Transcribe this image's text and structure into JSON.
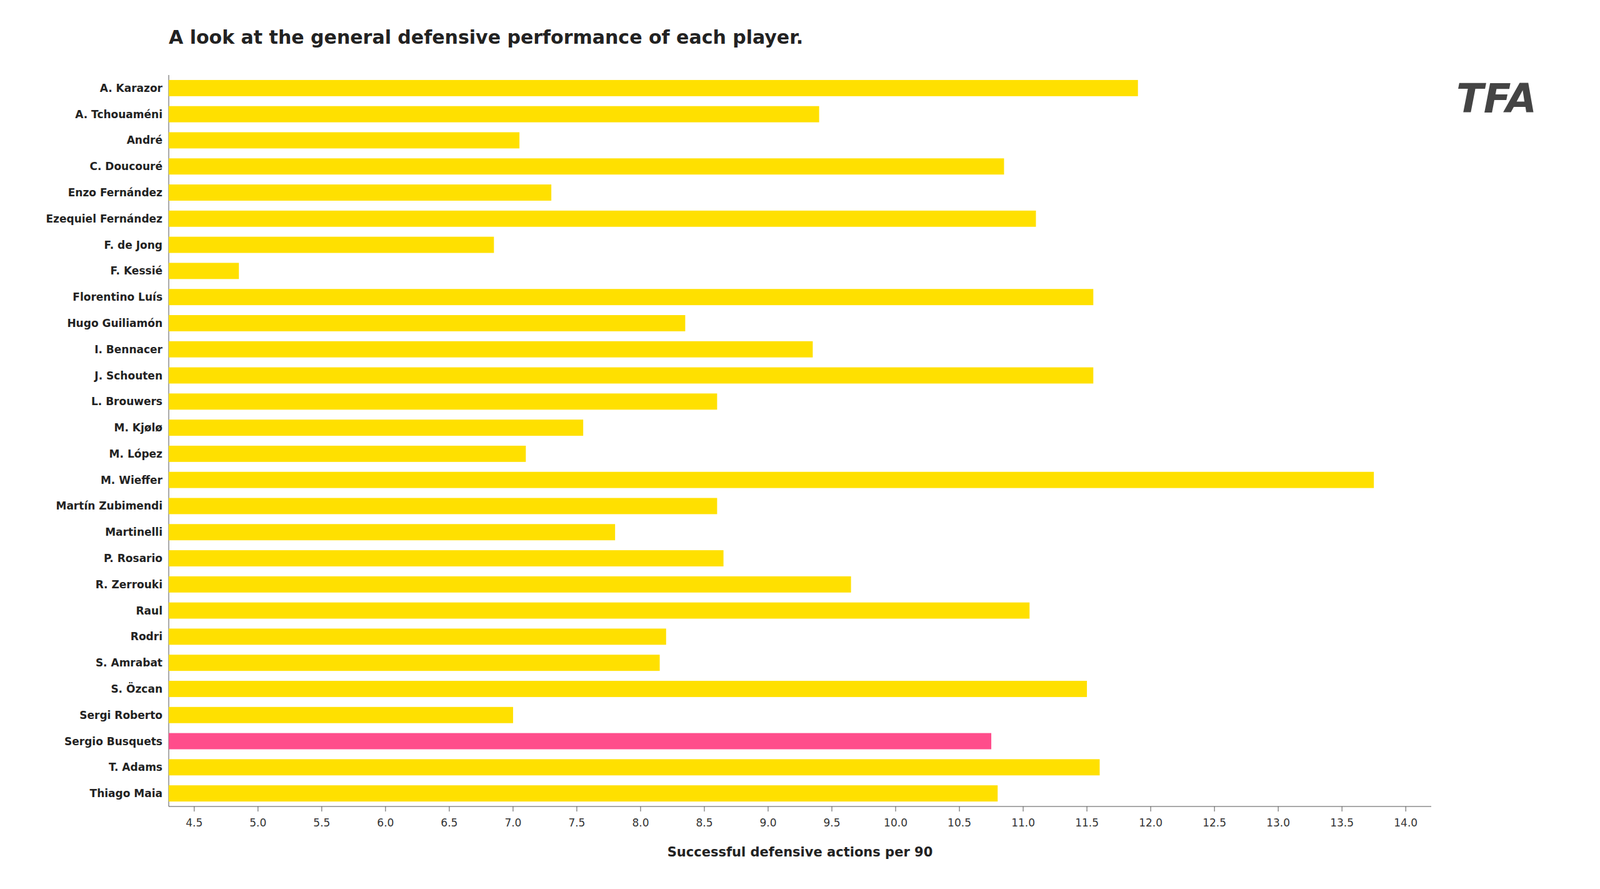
{
  "chart_data": {
    "type": "bar",
    "orientation": "horizontal",
    "title": "A look at the general defensive performance of each player.",
    "xlabel": "Successful defensive actions per 90",
    "annotations": [
      {
        "text": "TFA"
      }
    ],
    "categories": [
      "A. Karazor",
      "A. Tchouaméni",
      "André",
      "C. Doucouré",
      "Enzo Fernández",
      "Ezequiel Fernández",
      "F. de Jong",
      "F. Kessié",
      "Florentino Luís",
      "Hugo Guiliamón",
      "I. Bennacer",
      "J. Schouten",
      "L. Brouwers",
      "M. Kjølø",
      "M. López",
      "M. Wieffer",
      "Martín Zubimendi",
      "Martinelli",
      "P. Rosario",
      "R. Zerrouki",
      "Raul",
      "Rodri",
      "S. Amrabat",
      "S. Özcan",
      "Sergi Roberto",
      "Sergio Busquets",
      "T. Adams",
      "Thiago Maia"
    ],
    "values": [
      11.9,
      9.4,
      7.05,
      10.85,
      7.3,
      11.1,
      6.85,
      4.85,
      11.55,
      8.35,
      9.35,
      11.55,
      8.6,
      7.55,
      7.1,
      13.75,
      8.6,
      7.8,
      8.65,
      9.65,
      11.05,
      8.2,
      8.15,
      11.5,
      7.0,
      10.75,
      11.6,
      10.8
    ],
    "colors": [
      "#FFE000",
      "#FFE000",
      "#FFE000",
      "#FFE000",
      "#FFE000",
      "#FFE000",
      "#FFE000",
      "#FFE000",
      "#FFE000",
      "#FFE000",
      "#FFE000",
      "#FFE000",
      "#FFE000",
      "#FFE000",
      "#FFE000",
      "#FFE000",
      "#FFE000",
      "#FFE000",
      "#FFE000",
      "#FFE000",
      "#FFE000",
      "#FFE000",
      "#FFE000",
      "#FFE000",
      "#FFE000",
      "#FF4D8B",
      "#FFE000",
      "#FFE000"
    ],
    "xlim": [
      4.3,
      14.2
    ],
    "xticks": [
      4.5,
      {
        "value": 5,
        "label": "5.0"
      },
      5.5,
      {
        "value": 6,
        "label": "6.0"
      },
      6.5,
      {
        "value": 7,
        "label": "7.0"
      },
      7.5,
      {
        "value": 8,
        "label": "8.0"
      },
      8.5,
      {
        "value": 9,
        "label": "9.0"
      },
      9.5,
      {
        "value": 10,
        "label": "10.0"
      },
      10.5,
      {
        "value": 11,
        "label": "11.0"
      },
      11.5,
      {
        "value": 12,
        "label": "12.0"
      },
      12.5,
      {
        "value": 13,
        "label": "13.0"
      },
      13.5,
      {
        "value": 14,
        "label": "14.0"
      }
    ],
    "grid": false
  }
}
